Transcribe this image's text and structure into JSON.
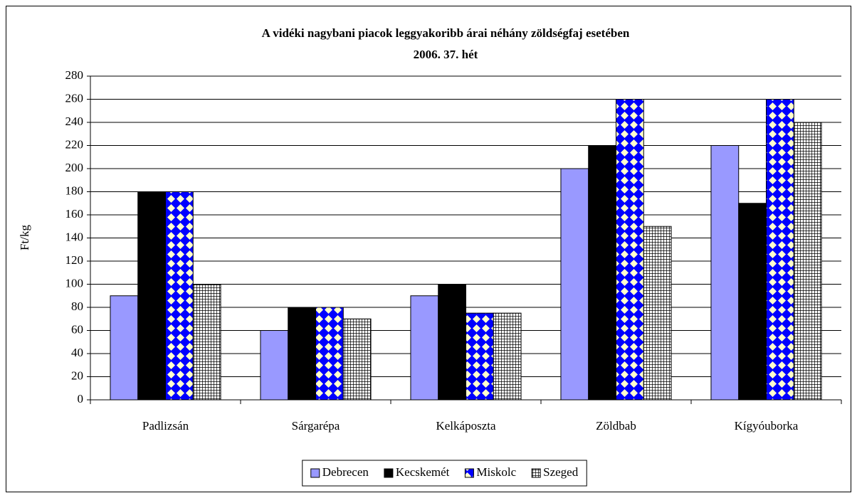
{
  "chart_data": {
    "type": "bar",
    "title": "A vidéki nagybani piacok leggyakoribb árai néhány zöldségfaj esetében",
    "subtitle": "2006. 37. hét",
    "y_label": "Ft/kg",
    "categories": [
      "Padlizsán",
      "Sárgarépa",
      "Kelkáposzta",
      "Zöldbab",
      "Kígyóuborka"
    ],
    "series": [
      {
        "name": "Debrecen",
        "color": "#9999ff",
        "values": [
          90,
          60,
          90,
          200,
          220
        ]
      },
      {
        "name": "Kecskemét",
        "color": "#000000",
        "values": [
          180,
          80,
          100,
          220,
          170
        ]
      },
      {
        "name": "Miskolc",
        "color": "#0000ff",
        "pattern": "diamond",
        "values": [
          180,
          80,
          75,
          260,
          260
        ]
      },
      {
        "name": "Szeged",
        "color": "#000000",
        "pattern": "grid",
        "values": [
          100,
          70,
          75,
          150,
          240
        ]
      }
    ],
    "ylim": [
      0,
      280
    ],
    "yticks": [
      0,
      20,
      40,
      60,
      80,
      100,
      120,
      140,
      160,
      180,
      200,
      220,
      240,
      260,
      280
    ],
    "grid": true,
    "legend": "bottom"
  }
}
